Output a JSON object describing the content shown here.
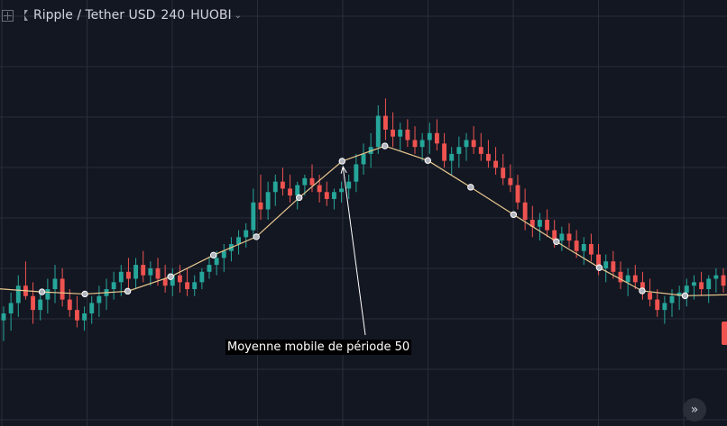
{
  "header": {
    "symbol": "Ripple / Tether USD",
    "interval": "240",
    "exchange": "HUOBI"
  },
  "annotation": "Moyenne mobile de période 50",
  "colors": {
    "background": "#131722",
    "grid": "#2a2e39",
    "up": "#26a69a",
    "down": "#ef5350",
    "ma": "#e8c78e",
    "text": "#d1d4dc"
  },
  "chart_data": {
    "type": "candlestick",
    "title": "",
    "xlabel": "",
    "ylabel": "",
    "ylim": [
      0,
      100
    ],
    "candles": [
      {
        "o": 18,
        "h": 22,
        "l": 12,
        "c": 20
      },
      {
        "o": 20,
        "h": 26,
        "l": 15,
        "c": 23
      },
      {
        "o": 23,
        "h": 31,
        "l": 19,
        "c": 28
      },
      {
        "o": 28,
        "h": 35,
        "l": 24,
        "c": 25
      },
      {
        "o": 25,
        "h": 29,
        "l": 17,
        "c": 21
      },
      {
        "o": 21,
        "h": 26,
        "l": 18,
        "c": 24
      },
      {
        "o": 24,
        "h": 30,
        "l": 20,
        "c": 27
      },
      {
        "o": 27,
        "h": 34,
        "l": 23,
        "c": 30
      },
      {
        "o": 30,
        "h": 33,
        "l": 22,
        "c": 24
      },
      {
        "o": 24,
        "h": 27,
        "l": 19,
        "c": 21
      },
      {
        "o": 21,
        "h": 25,
        "l": 16,
        "c": 18
      },
      {
        "o": 18,
        "h": 22,
        "l": 15,
        "c": 20
      },
      {
        "o": 20,
        "h": 25,
        "l": 17,
        "c": 23
      },
      {
        "o": 23,
        "h": 28,
        "l": 19,
        "c": 25
      },
      {
        "o": 25,
        "h": 30,
        "l": 21,
        "c": 27
      },
      {
        "o": 27,
        "h": 32,
        "l": 24,
        "c": 29
      },
      {
        "o": 29,
        "h": 34,
        "l": 25,
        "c": 32
      },
      {
        "o": 32,
        "h": 36,
        "l": 27,
        "c": 30
      },
      {
        "o": 30,
        "h": 36,
        "l": 27,
        "c": 34
      },
      {
        "o": 34,
        "h": 38,
        "l": 29,
        "c": 31
      },
      {
        "o": 31,
        "h": 35,
        "l": 28,
        "c": 33
      },
      {
        "o": 33,
        "h": 36,
        "l": 28,
        "c": 30
      },
      {
        "o": 30,
        "h": 34,
        "l": 26,
        "c": 28
      },
      {
        "o": 28,
        "h": 33,
        "l": 25,
        "c": 31
      },
      {
        "o": 31,
        "h": 34,
        "l": 26,
        "c": 29
      },
      {
        "o": 29,
        "h": 33,
        "l": 25,
        "c": 27
      },
      {
        "o": 27,
        "h": 31,
        "l": 25,
        "c": 29
      },
      {
        "o": 29,
        "h": 33,
        "l": 27,
        "c": 32
      },
      {
        "o": 32,
        "h": 36,
        "l": 30,
        "c": 34
      },
      {
        "o": 34,
        "h": 38,
        "l": 31,
        "c": 36
      },
      {
        "o": 36,
        "h": 40,
        "l": 32,
        "c": 38
      },
      {
        "o": 38,
        "h": 42,
        "l": 35,
        "c": 40
      },
      {
        "o": 40,
        "h": 44,
        "l": 37,
        "c": 42
      },
      {
        "o": 42,
        "h": 46,
        "l": 39,
        "c": 44
      },
      {
        "o": 44,
        "h": 56,
        "l": 42,
        "c": 52
      },
      {
        "o": 52,
        "h": 60,
        "l": 47,
        "c": 50
      },
      {
        "o": 50,
        "h": 58,
        "l": 47,
        "c": 55
      },
      {
        "o": 55,
        "h": 60,
        "l": 51,
        "c": 58
      },
      {
        "o": 58,
        "h": 62,
        "l": 54,
        "c": 56
      },
      {
        "o": 56,
        "h": 60,
        "l": 52,
        "c": 54
      },
      {
        "o": 54,
        "h": 58,
        "l": 50,
        "c": 57
      },
      {
        "o": 57,
        "h": 60,
        "l": 54,
        "c": 59
      },
      {
        "o": 59,
        "h": 63,
        "l": 55,
        "c": 57
      },
      {
        "o": 57,
        "h": 60,
        "l": 52,
        "c": 55
      },
      {
        "o": 55,
        "h": 58,
        "l": 51,
        "c": 53
      },
      {
        "o": 53,
        "h": 56,
        "l": 50,
        "c": 55
      },
      {
        "o": 55,
        "h": 58,
        "l": 52,
        "c": 56
      },
      {
        "o": 56,
        "h": 60,
        "l": 53,
        "c": 58
      },
      {
        "o": 58,
        "h": 66,
        "l": 55,
        "c": 63
      },
      {
        "o": 63,
        "h": 69,
        "l": 60,
        "c": 66
      },
      {
        "o": 66,
        "h": 72,
        "l": 62,
        "c": 68
      },
      {
        "o": 68,
        "h": 80,
        "l": 66,
        "c": 77
      },
      {
        "o": 77,
        "h": 82,
        "l": 70,
        "c": 73
      },
      {
        "o": 73,
        "h": 78,
        "l": 68,
        "c": 71
      },
      {
        "o": 71,
        "h": 75,
        "l": 67,
        "c": 73
      },
      {
        "o": 73,
        "h": 76,
        "l": 68,
        "c": 70
      },
      {
        "o": 70,
        "h": 74,
        "l": 66,
        "c": 68
      },
      {
        "o": 68,
        "h": 72,
        "l": 64,
        "c": 70
      },
      {
        "o": 70,
        "h": 75,
        "l": 66,
        "c": 72
      },
      {
        "o": 72,
        "h": 76,
        "l": 67,
        "c": 69
      },
      {
        "o": 69,
        "h": 72,
        "l": 62,
        "c": 64
      },
      {
        "o": 64,
        "h": 68,
        "l": 60,
        "c": 66
      },
      {
        "o": 66,
        "h": 71,
        "l": 62,
        "c": 68
      },
      {
        "o": 68,
        "h": 72,
        "l": 64,
        "c": 70
      },
      {
        "o": 70,
        "h": 74,
        "l": 66,
        "c": 68
      },
      {
        "o": 68,
        "h": 72,
        "l": 64,
        "c": 66
      },
      {
        "o": 66,
        "h": 70,
        "l": 62,
        "c": 64
      },
      {
        "o": 64,
        "h": 68,
        "l": 60,
        "c": 62
      },
      {
        "o": 62,
        "h": 66,
        "l": 57,
        "c": 59
      },
      {
        "o": 59,
        "h": 63,
        "l": 55,
        "c": 57
      },
      {
        "o": 57,
        "h": 60,
        "l": 50,
        "c": 52
      },
      {
        "o": 52,
        "h": 56,
        "l": 44,
        "c": 47
      },
      {
        "o": 47,
        "h": 51,
        "l": 42,
        "c": 45
      },
      {
        "o": 45,
        "h": 49,
        "l": 41,
        "c": 47
      },
      {
        "o": 47,
        "h": 50,
        "l": 42,
        "c": 44
      },
      {
        "o": 44,
        "h": 47,
        "l": 39,
        "c": 41
      },
      {
        "o": 41,
        "h": 45,
        "l": 38,
        "c": 43
      },
      {
        "o": 43,
        "h": 46,
        "l": 39,
        "c": 41
      },
      {
        "o": 41,
        "h": 44,
        "l": 36,
        "c": 38
      },
      {
        "o": 38,
        "h": 42,
        "l": 34,
        "c": 40
      },
      {
        "o": 40,
        "h": 43,
        "l": 35,
        "c": 37
      },
      {
        "o": 37,
        "h": 40,
        "l": 31,
        "c": 33
      },
      {
        "o": 33,
        "h": 37,
        "l": 29,
        "c": 35
      },
      {
        "o": 35,
        "h": 38,
        "l": 30,
        "c": 32
      },
      {
        "o": 32,
        "h": 35,
        "l": 27,
        "c": 29
      },
      {
        "o": 29,
        "h": 33,
        "l": 25,
        "c": 31
      },
      {
        "o": 31,
        "h": 34,
        "l": 27,
        "c": 29
      },
      {
        "o": 29,
        "h": 32,
        "l": 24,
        "c": 26
      },
      {
        "o": 26,
        "h": 30,
        "l": 22,
        "c": 24
      },
      {
        "o": 24,
        "h": 27,
        "l": 19,
        "c": 21
      },
      {
        "o": 21,
        "h": 25,
        "l": 17,
        "c": 23
      },
      {
        "o": 23,
        "h": 27,
        "l": 19,
        "c": 25
      },
      {
        "o": 25,
        "h": 28,
        "l": 21,
        "c": 26
      },
      {
        "o": 26,
        "h": 30,
        "l": 22,
        "c": 28
      },
      {
        "o": 28,
        "h": 31,
        "l": 24,
        "c": 29
      },
      {
        "o": 29,
        "h": 32,
        "l": 25,
        "c": 27
      },
      {
        "o": 27,
        "h": 31,
        "l": 23,
        "c": 30
      },
      {
        "o": 30,
        "h": 33,
        "l": 26,
        "c": 31
      },
      {
        "o": 31,
        "h": 33,
        "l": 26,
        "c": 28
      }
    ],
    "ma_period": 50,
    "ma": [
      27.1,
      26.2,
      25.6,
      26.4,
      30.6,
      36.8,
      42.1,
      53.4,
      63.9,
      68.3,
      64.1,
      56.4,
      48.5,
      40.7,
      33.2,
      26.5,
      25.1,
      25.4
    ]
  }
}
